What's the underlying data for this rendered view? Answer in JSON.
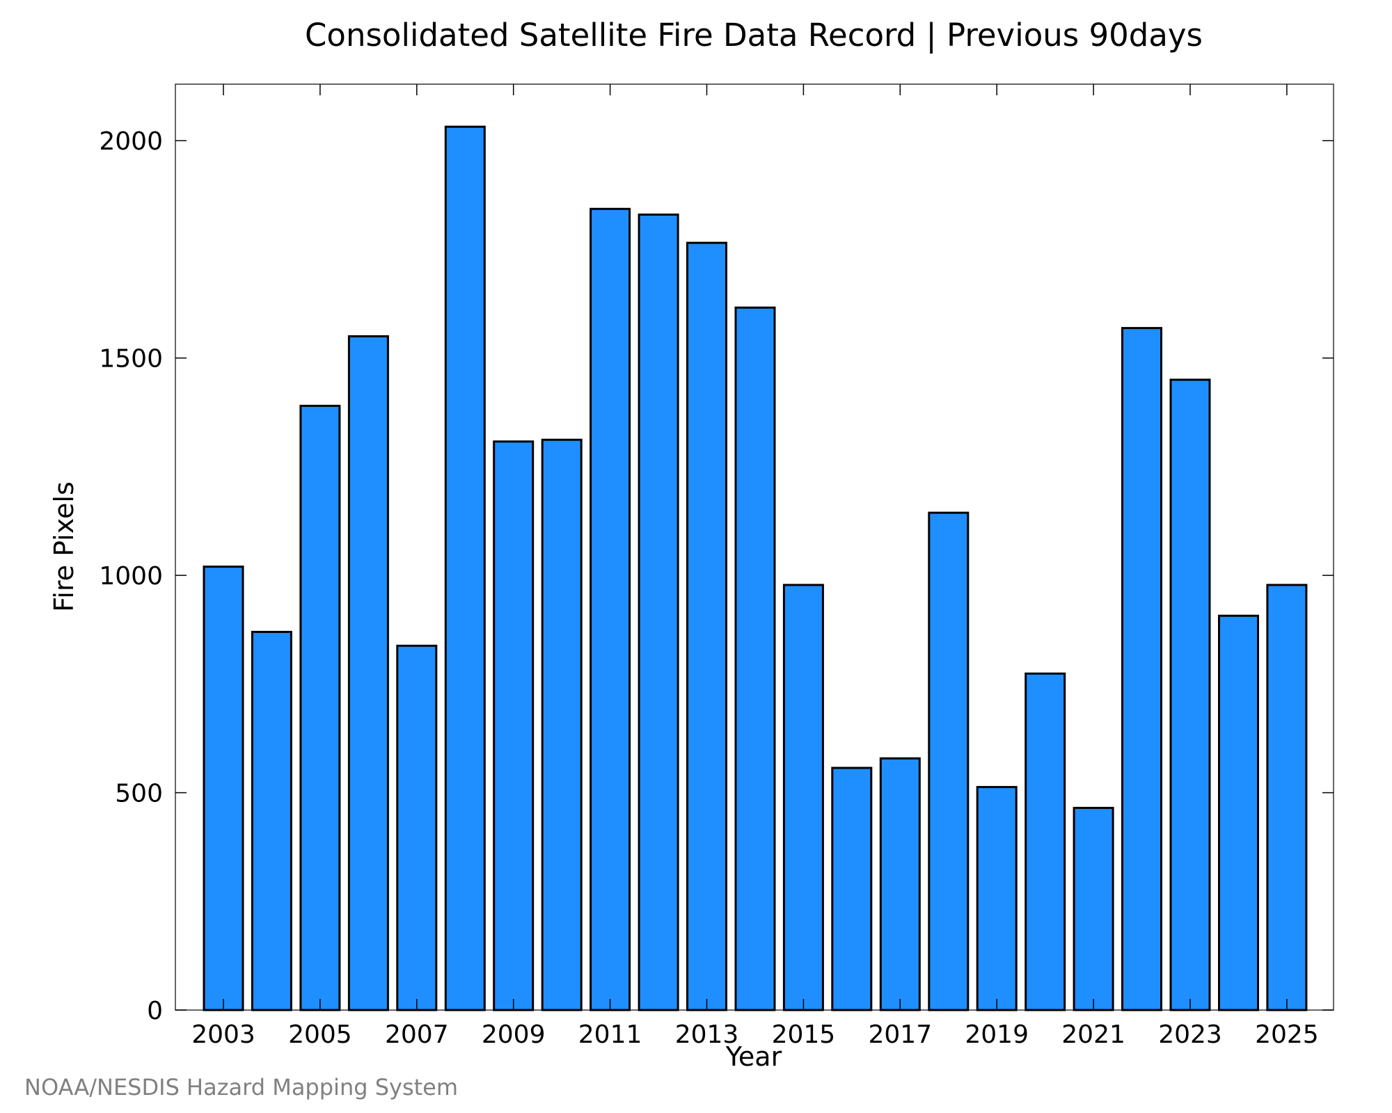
{
  "chart_data": {
    "type": "bar",
    "title": "Consolidated Satellite Fire Data Record | Previous 90days",
    "xlabel": "Year",
    "ylabel": "Fire Pixels",
    "categories": [
      "2003",
      "2004",
      "2005",
      "2006",
      "2007",
      "2008",
      "2009",
      "2010",
      "2011",
      "2012",
      "2013",
      "2014",
      "2015",
      "2016",
      "2017",
      "2018",
      "2019",
      "2020",
      "2021",
      "2022",
      "2023",
      "2024",
      "2025"
    ],
    "values": [
      1020,
      870,
      1390,
      1550,
      838,
      2032,
      1308,
      1312,
      1843,
      1830,
      1765,
      1616,
      978,
      557,
      579,
      1144,
      513,
      774,
      465,
      1569,
      1450,
      907,
      978
    ],
    "x_tick_labels": [
      "2003",
      "2005",
      "2007",
      "2009",
      "2011",
      "2013",
      "2015",
      "2017",
      "2019",
      "2021",
      "2023",
      "2025"
    ],
    "y_ticks": [
      0,
      500,
      1000,
      1500,
      2000
    ],
    "ylim": [
      0,
      2130
    ],
    "grid": false,
    "bar_color": "#1f8fff",
    "bar_edge_color": "#000000"
  },
  "footer": {
    "credit": "NOAA/NESDIS Hazard Mapping System"
  }
}
